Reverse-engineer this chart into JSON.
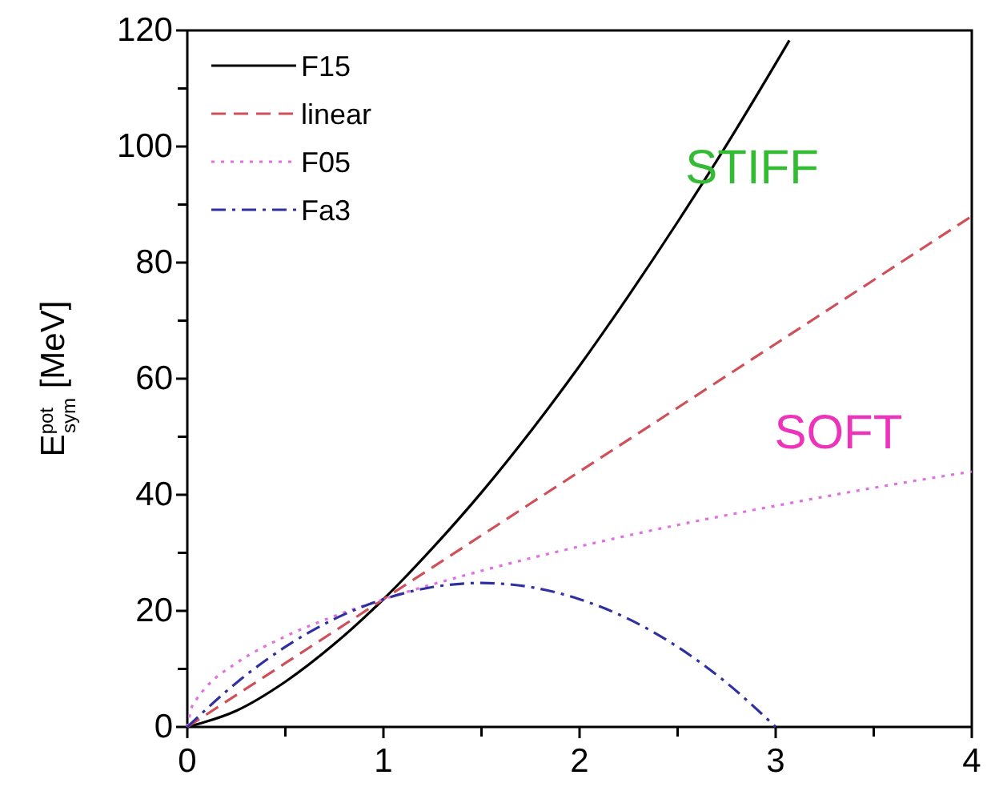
{
  "chart_data": {
    "type": "line",
    "ylabel": "E$^{pot}$$_{sym}$ [MeV]",
    "xlim": [
      0,
      4
    ],
    "ylim": [
      0,
      120
    ],
    "xticks": [
      0,
      {
        "value": 0.5,
        "label": null
      },
      1,
      {
        "value": 1.5,
        "label": null
      },
      2,
      {
        "value": 2.5,
        "label": null
      },
      3,
      {
        "value": 3.5,
        "label": null
      },
      4
    ],
    "yticks": [
      0,
      {
        "value": 10,
        "label": null
      },
      20,
      {
        "value": 30,
        "label": null
      },
      40,
      {
        "value": 50,
        "label": null
      },
      60,
      {
        "value": 70,
        "label": null
      },
      80,
      {
        "value": 90,
        "label": null
      },
      100,
      {
        "value": 110,
        "label": null
      },
      120
    ],
    "grid": false,
    "legend": "top left",
    "series": [
      {
        "name": "F15",
        "color": "#000000",
        "line_style": "solid",
        "x": [
          0,
          0.25,
          0.5,
          0.75,
          1,
          1.25,
          1.5,
          1.75,
          2,
          2.25,
          2.5,
          2.75,
          3,
          3.07
        ],
        "values": [
          0,
          2.8,
          7.8,
          14.3,
          22,
          30.8,
          40.4,
          50.9,
          62.2,
          74.3,
          87,
          100.3,
          114.3,
          118.3
        ]
      },
      {
        "name": "linear",
        "color": "#d0505a",
        "line_style": "dashed",
        "x": [
          0,
          1,
          2,
          3,
          4
        ],
        "values": [
          0,
          22,
          44,
          66,
          88
        ]
      },
      {
        "name": "F05",
        "color": "#e070e0",
        "line_style": "dotted",
        "x": [
          0,
          0.02,
          0.05,
          0.1,
          0.25,
          0.5,
          0.75,
          1,
          1.5,
          2,
          2.5,
          3,
          3.5,
          4
        ],
        "values": [
          0,
          3.1,
          4.9,
          7,
          11,
          15.6,
          19.1,
          22,
          26.9,
          31.1,
          34.8,
          38.1,
          41.2,
          44
        ]
      },
      {
        "name": "Fa3",
        "color": "#3030a0",
        "line_style": "dashdot",
        "x": [
          0,
          0.25,
          0.5,
          0.75,
          1,
          1.25,
          1.5,
          1.75,
          2,
          2.25,
          2.5,
          2.75,
          3
        ],
        "values": [
          0,
          7.6,
          13.8,
          18.6,
          22,
          24.1,
          24.8,
          24.1,
          22,
          18.6,
          13.8,
          7.6,
          0
        ]
      }
    ],
    "annotations": [
      "STIFF",
      "SOFT"
    ]
  }
}
